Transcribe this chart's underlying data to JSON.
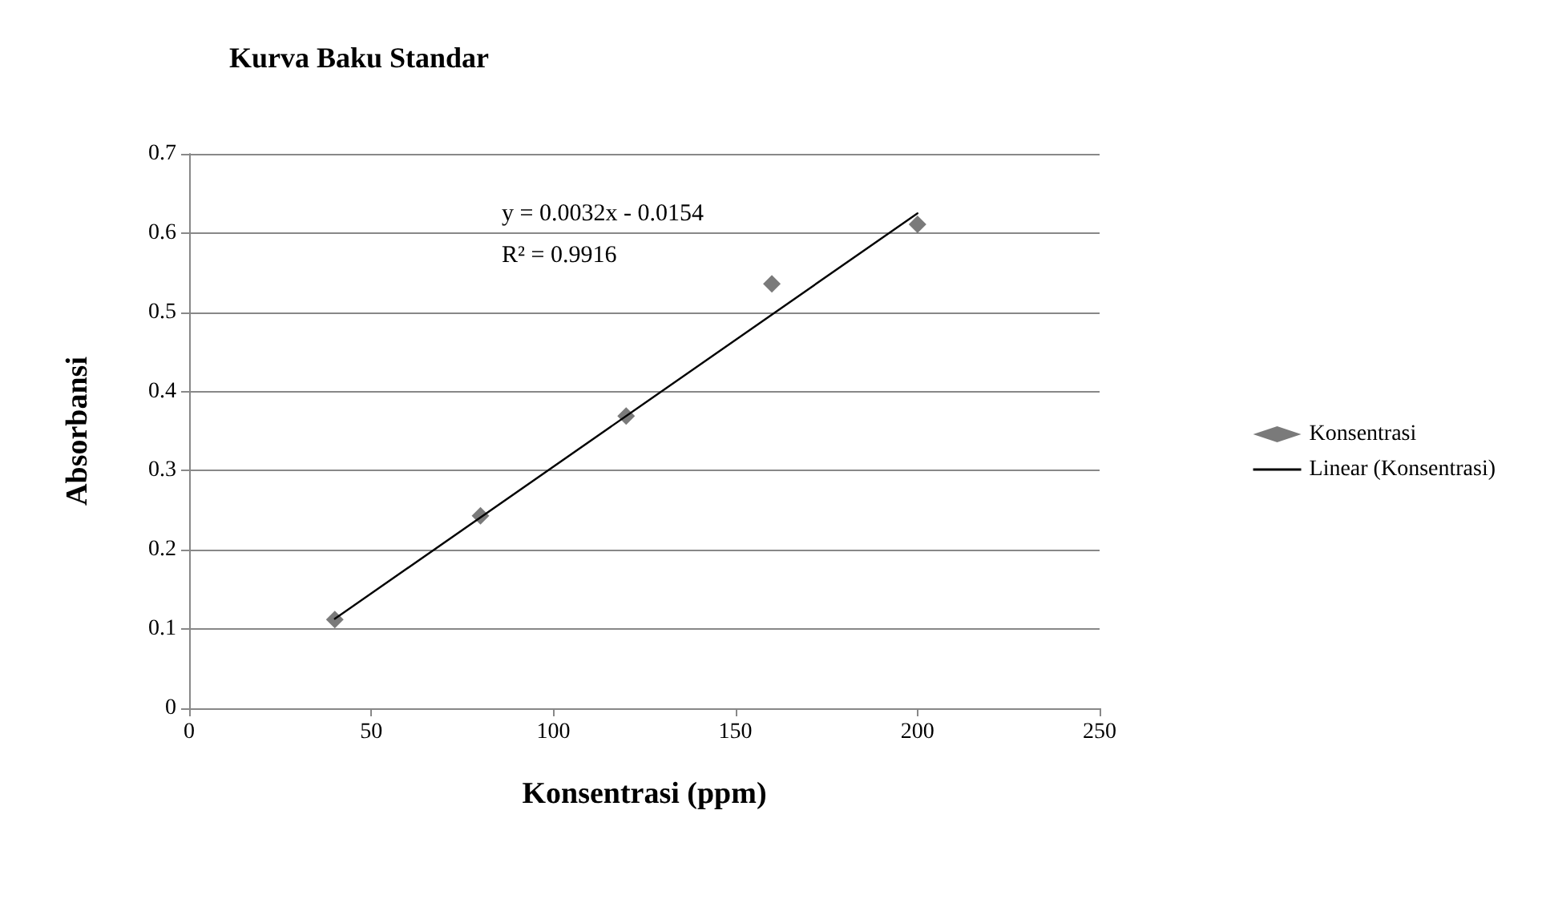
{
  "chart_data": {
    "type": "scatter",
    "title": "Kurva Baku Standar",
    "xlabel": "Konsentrasi (ppm)",
    "ylabel": "Absorbansi",
    "x": [
      40,
      80,
      120,
      160,
      200
    ],
    "series": [
      {
        "name": "Konsentrasi",
        "color": "#595959",
        "marker": "diamond",
        "values": [
          0.112,
          0.243,
          0.369,
          0.536,
          0.611
        ]
      },
      {
        "name": "Linear (Konsentrasi)",
        "type": "line",
        "color": "#000000",
        "marker": "none",
        "line_style": "solid",
        "x": [
          40,
          200
        ],
        "values": [
          0.113,
          0.625
        ]
      }
    ],
    "xlim": [
      0,
      250
    ],
    "xticks": [
      0,
      50,
      100,
      150,
      200,
      250
    ],
    "ylim": [
      0,
      0.7
    ],
    "yticks": [
      0,
      0.1,
      0.2,
      0.3,
      0.4,
      0.5,
      0.6,
      0.7
    ],
    "grid": "y",
    "legend": "right",
    "annotations": [
      "y = 0.0032x - 0.0154",
      "R² = 0.9916"
    ]
  }
}
